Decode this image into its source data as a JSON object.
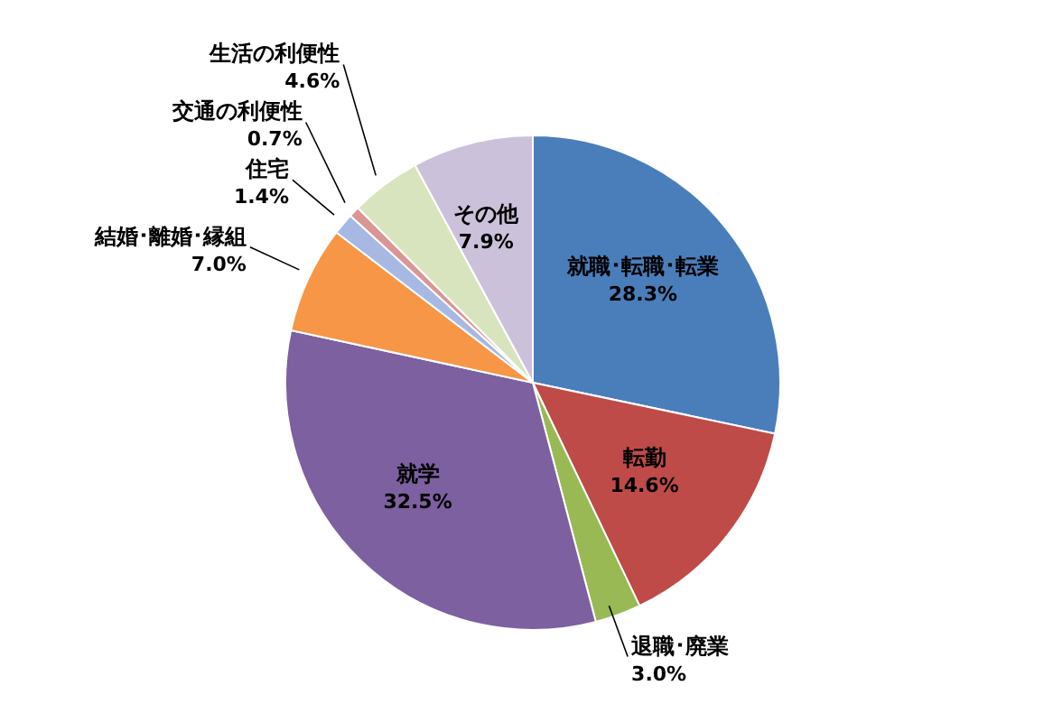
{
  "chart_data": {
    "type": "pie",
    "categories": [
      "就職･転職･転業",
      "転勤",
      "退職･廃業",
      "就学",
      "結婚･離婚･縁組",
      "住宅",
      "交通の利便性",
      "生活の利便性",
      "その他"
    ],
    "values": [
      28.3,
      14.6,
      3.0,
      32.5,
      7.0,
      1.4,
      0.7,
      4.6,
      7.9
    ],
    "value_labels": [
      "28.3%",
      "14.6%",
      "3.0%",
      "32.5%",
      "7.0%",
      "1.4%",
      "0.7%",
      "4.6%",
      "7.9%"
    ],
    "colors": [
      "#4a7ebb",
      "#be4b48",
      "#98b954",
      "#7d60a0",
      "#f79646",
      "#a7b9e3",
      "#d99694",
      "#d7e4bd",
      "#ccc1da"
    ],
    "legend": false
  }
}
